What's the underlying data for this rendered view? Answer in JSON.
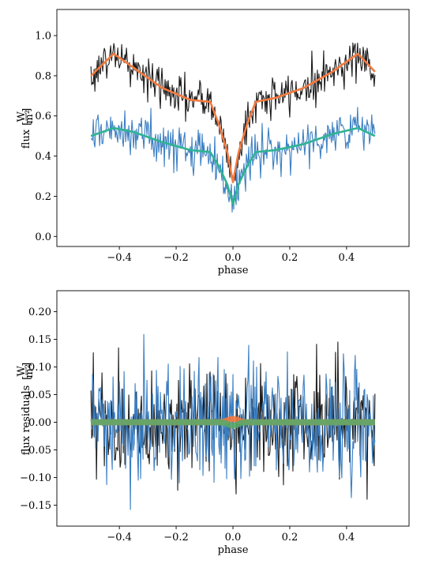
{
  "chart_data": [
    {
      "type": "line",
      "xlabel": "phase",
      "ylabel": "flux [W/m²]",
      "ylabel_main": "flux",
      "ylabel_num": "W",
      "ylabel_den": "m²",
      "xlim": [
        -0.62,
        0.62
      ],
      "ylim": [
        -0.05,
        1.13
      ],
      "xticks": [
        -0.4,
        -0.2,
        0.0,
        0.2,
        0.4
      ],
      "xtick_labels": [
        "−0.4",
        "−0.2",
        "0.0",
        "0.2",
        "0.4"
      ],
      "yticks": [
        0.0,
        0.2,
        0.4,
        0.6,
        0.8,
        1.0
      ],
      "ytick_labels": [
        "0.0",
        "0.2",
        "0.4",
        "0.6",
        "0.8",
        "1.0"
      ],
      "series": [
        {
          "role": "observed",
          "color": "#1a1a1a",
          "noise": 0.05,
          "x": [
            -0.5,
            -0.42,
            -0.35,
            -0.25,
            -0.15,
            -0.08,
            -0.05,
            -0.02,
            0.0,
            0.02,
            0.05,
            0.08,
            0.15,
            0.25,
            0.35,
            0.44,
            0.5
          ],
          "y": [
            0.8,
            0.91,
            0.84,
            0.74,
            0.68,
            0.67,
            0.56,
            0.42,
            0.27,
            0.42,
            0.56,
            0.67,
            0.69,
            0.74,
            0.82,
            0.91,
            0.82
          ]
        },
        {
          "role": "model",
          "color": "#f47a3f",
          "x": [
            -0.5,
            -0.42,
            -0.35,
            -0.25,
            -0.15,
            -0.08,
            -0.05,
            -0.02,
            0.0,
            0.02,
            0.05,
            0.08,
            0.15,
            0.25,
            0.35,
            0.44,
            0.5
          ],
          "y": [
            0.8,
            0.91,
            0.84,
            0.74,
            0.68,
            0.67,
            0.56,
            0.42,
            0.27,
            0.42,
            0.56,
            0.67,
            0.69,
            0.74,
            0.82,
            0.91,
            0.82
          ]
        },
        {
          "role": "observed",
          "color": "#3a7ec2",
          "noise": 0.055,
          "x": [
            -0.5,
            -0.42,
            -0.35,
            -0.25,
            -0.15,
            -0.08,
            -0.05,
            -0.02,
            0.0,
            0.02,
            0.05,
            0.08,
            0.15,
            0.25,
            0.35,
            0.44,
            0.5
          ],
          "y": [
            0.5,
            0.54,
            0.52,
            0.47,
            0.43,
            0.42,
            0.35,
            0.26,
            0.16,
            0.26,
            0.35,
            0.42,
            0.43,
            0.46,
            0.51,
            0.54,
            0.5
          ]
        },
        {
          "role": "model",
          "color": "#2fb392",
          "x": [
            -0.5,
            -0.42,
            -0.35,
            -0.25,
            -0.15,
            -0.08,
            -0.05,
            -0.02,
            0.0,
            0.02,
            0.05,
            0.08,
            0.15,
            0.25,
            0.35,
            0.44,
            0.5
          ],
          "y": [
            0.5,
            0.54,
            0.52,
            0.47,
            0.43,
            0.42,
            0.35,
            0.26,
            0.16,
            0.26,
            0.35,
            0.42,
            0.43,
            0.46,
            0.51,
            0.54,
            0.5
          ]
        }
      ]
    },
    {
      "type": "line",
      "xlabel": "phase",
      "ylabel": "flux residuals [W/m²]",
      "ylabel_main": "flux residuals",
      "ylabel_num": "W",
      "ylabel_den": "m²",
      "xlim": [
        -0.62,
        0.62
      ],
      "ylim": [
        -0.188,
        0.238
      ],
      "xticks": [
        -0.4,
        -0.2,
        0.0,
        0.2,
        0.4
      ],
      "xtick_labels": [
        "−0.4",
        "−0.2",
        "0.0",
        "0.2",
        "0.4"
      ],
      "yticks": [
        -0.15,
        -0.1,
        -0.05,
        0.0,
        0.05,
        0.1,
        0.15,
        0.2
      ],
      "ytick_labels": [
        "−0.15",
        "−0.10",
        "−0.05",
        "0.00",
        "0.05",
        "0.10",
        "0.15",
        "0.20"
      ],
      "series": [
        {
          "role": "residuals",
          "color": "#1a1a1a",
          "noise": 0.048,
          "x": [
            -0.5,
            0.5
          ],
          "y": [
            0.0,
            0.0
          ]
        },
        {
          "role": "residuals",
          "color": "#3a7ec2",
          "noise": 0.055,
          "x": [
            -0.5,
            0.5
          ],
          "y": [
            0.0,
            0.0
          ]
        },
        {
          "role": "model-band",
          "color": "#f47a3f",
          "band": 0.004,
          "x": [
            -0.5,
            0.5
          ],
          "y": [
            0.0,
            0.0
          ]
        },
        {
          "role": "model-band",
          "color": "#5aa86a",
          "band": 0.004,
          "x": [
            -0.5,
            0.5
          ],
          "y": [
            0.0,
            0.0
          ]
        }
      ]
    }
  ]
}
